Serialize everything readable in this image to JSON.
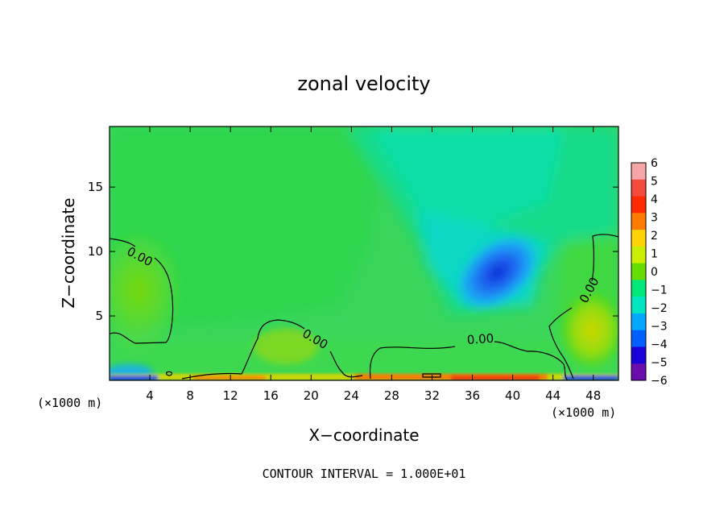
{
  "chart_data": {
    "type": "heatmap",
    "title": "zonal velocity",
    "xlabel": "X−coordinate",
    "ylabel": "Z−coordinate",
    "x_unit_left": "(×1000 m)",
    "x_unit_right": "(×1000 m)",
    "xlim": [
      0,
      50.5
    ],
    "ylim": [
      0,
      19.7
    ],
    "xticks": [
      4,
      8,
      12,
      16,
      20,
      24,
      28,
      32,
      36,
      40,
      44,
      48
    ],
    "yticks": [
      5,
      10,
      15
    ],
    "colorbar": {
      "levels": [
        "6",
        "5",
        "4",
        "3",
        "2",
        "1",
        "0",
        "−1",
        "−2",
        "−3",
        "−4",
        "−5",
        "−6"
      ],
      "colors": [
        "#f7a6a6",
        "#f44c3c",
        "#ff2a00",
        "#ff7a00",
        "#ffd200",
        "#ccee00",
        "#66dd00",
        "#00e87a",
        "#00e6c2",
        "#00a8ff",
        "#0060ff",
        "#1a00d9",
        "#6a0dad"
      ]
    },
    "contours": [
      {
        "label": "0.00",
        "value": 0,
        "at": [
          3.0,
          9.6
        ]
      },
      {
        "label": "0.00",
        "value": 0,
        "at": [
          20.4,
          3.2
        ]
      },
      {
        "label": "0.00",
        "value": 0,
        "at": [
          36.8,
          3.2
        ]
      },
      {
        "label": "0.00",
        "value": 0,
        "at": [
          47.6,
          7.0
        ]
      }
    ],
    "footer": "CONTOUR INTERVAL = 1.000E+01"
  }
}
